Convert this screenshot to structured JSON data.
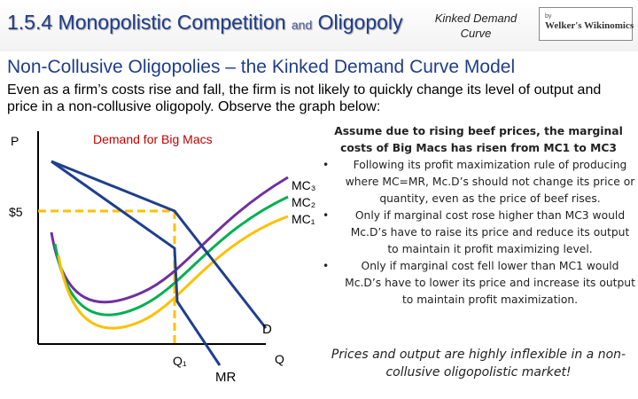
{
  "header": {
    "title_part1": "1.5.4 Monopolistic Competition",
    "title_and": "and",
    "title_part2": "Oligopoly",
    "subtitle_line1": "Kinked Demand",
    "subtitle_line2": "Curve",
    "logo_by": "by",
    "logo_name": "Welker's Wikinomics"
  },
  "slide_title": "Non-Collusive Oligopolies – the Kinked Demand Curve Model",
  "intro_text": "Even as a firm’s costs rise and fall, the firm is not likely to quickly change its level of output and price in a non-collusive oligopoly. Observe the graph below:",
  "graph": {
    "y_axis_label": "P",
    "x_axis_label": "Q",
    "title": "Demand for Big Macs",
    "price_label": "$5",
    "quantity_label": "Q₁",
    "mc3_label": "MC₃",
    "mc2_label": "MC₂",
    "mc1_label": "MC₁",
    "demand_label": "D",
    "mr_label": "MR",
    "colors": {
      "demand": "#1f3f8f",
      "mc3": "#7030a0",
      "mc2": "#00b050",
      "mc1": "#ffc000",
      "dashed": "#ffc000"
    }
  },
  "side": {
    "assume": "Assume due to rising beef prices, the marginal costs of Big Macs has risen from MC1 to MC3",
    "bullet_char": "•",
    "bullets": [
      "Following its profit maximization rule of producing where MC=MR, Mc.D’s should not change its price or quantity, even as the price of beef rises.",
      "Only if marginal cost rose higher than MC3 would Mc.D’s have to raise its price and reduce its output to maintain it profit maximizing level.",
      "Only if marginal cost fell lower than MC1 would Mc.D’s have to lower its price and increase its output to maintain profit maximization."
    ]
  },
  "closing": "Prices and output are highly inflexible in a non-collusive oligopolistic market!"
}
